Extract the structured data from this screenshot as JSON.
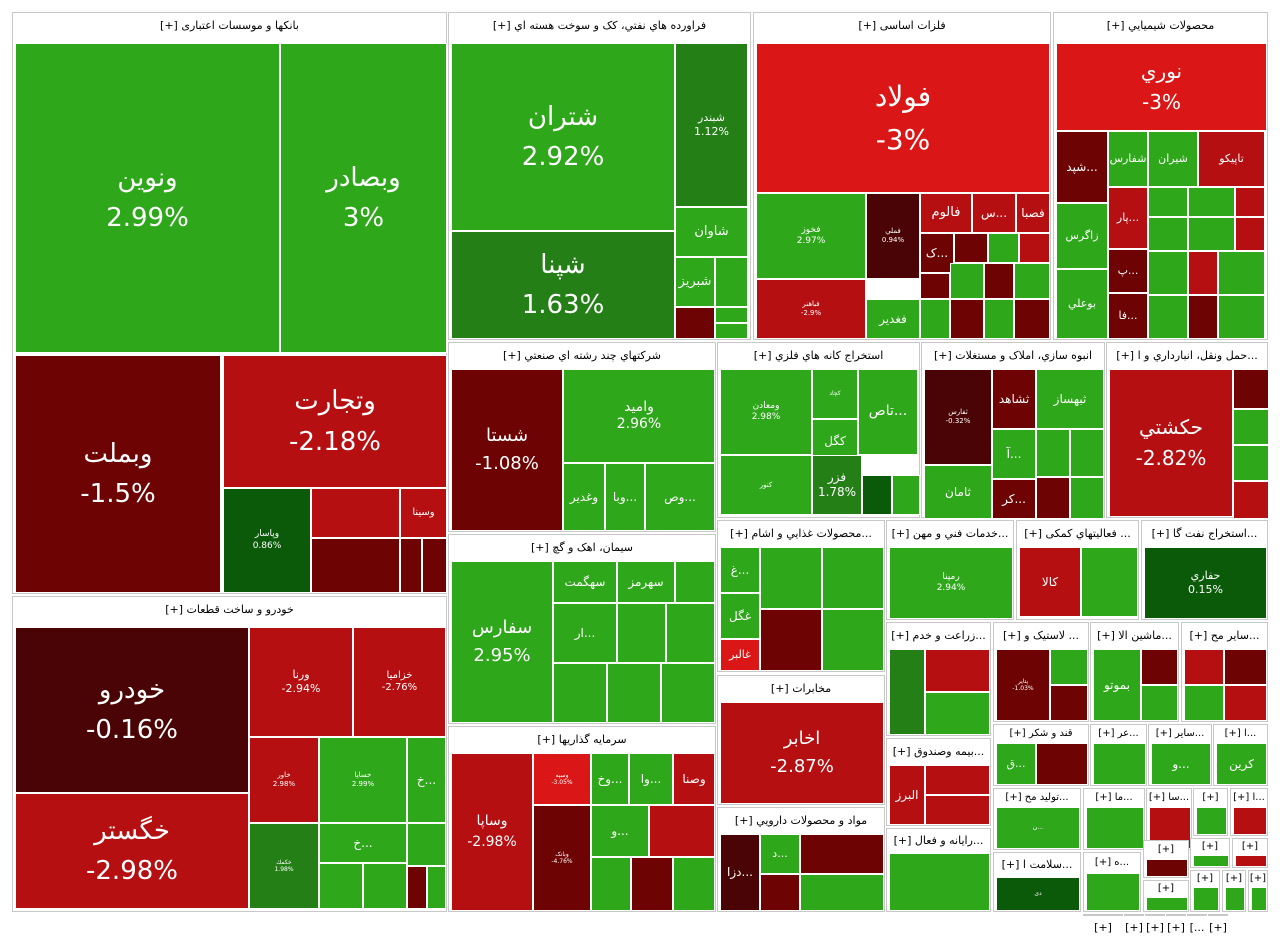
{
  "colors": {
    "g": "#2ea81a",
    "dg": "#257f17",
    "vdg": "#0b5a0a",
    "r": "#b50f12",
    "br": "#da1616",
    "dr": "#6d0303",
    "vdr": "#4a0405"
  },
  "sectors": [
    {
      "id": "banks",
      "title": "بانکها و موسسات اعتباری [+]",
      "tiles": [
        {
          "name": "ونوین",
          "pct": "2.99%",
          "color": "g",
          "big": 1
        },
        {
          "name": "وبصادر",
          "pct": "3%",
          "color": "g",
          "big": 1
        },
        {
          "name": "وبملت",
          "pct": "-1.5%",
          "color": "dr",
          "big": 1
        },
        {
          "name": "وتجارت",
          "pct": "-2.18%",
          "color": "r",
          "big": 1
        },
        {
          "name": "وپاسار",
          "pct": "0.86%",
          "color": "vdg",
          "big": 0
        },
        {
          "name": "وسينا",
          "pct": "",
          "color": "r",
          "big": 0
        }
      ]
    },
    {
      "id": "refinery",
      "title": "فراورده هاي نفتي، کک و سوخت هسته اي [+]",
      "tiles": [
        {
          "name": "شتران",
          "pct": "2.92%",
          "color": "g",
          "big": 1
        },
        {
          "name": "شپنا",
          "pct": "1.63%",
          "color": "dg",
          "big": 1
        },
        {
          "name": "شبندر",
          "pct": "1.12%",
          "color": "dg",
          "big": 0
        },
        {
          "name": "شاوان",
          "pct": "",
          "color": "g",
          "big": 0
        },
        {
          "name": "شبريز",
          "pct": "",
          "color": "g",
          "big": 0
        }
      ]
    },
    {
      "id": "metals",
      "title": "فلزات اساسی [+]",
      "tiles": [
        {
          "name": "فولاد",
          "pct": "-3%",
          "color": "br",
          "big": 1
        },
        {
          "name": "فخوز",
          "pct": "2.97%",
          "color": "g",
          "big": 0
        },
        {
          "name": "فملي",
          "pct": "0.94%",
          "color": "vdr",
          "big": 0
        },
        {
          "name": "فالوم",
          "pct": "",
          "color": "r",
          "big": 0
        },
        {
          "name": "فصبا",
          "pct": "",
          "color": "r",
          "big": 0
        },
        {
          "name": "فغدير",
          "pct": "",
          "color": "g",
          "big": 0
        },
        {
          "name": "فباهنر",
          "pct": "-2.9%",
          "color": "r",
          "big": 0
        },
        {
          "name": "...س",
          "pct": "",
          "color": "r",
          "big": 0
        },
        {
          "name": "...ک",
          "pct": "",
          "color": "dr",
          "big": 0
        }
      ]
    },
    {
      "id": "chem",
      "title": "محصولات شيميايي [+]",
      "tiles": [
        {
          "name": "نوري",
          "pct": "-3%",
          "color": "br",
          "big": 1
        },
        {
          "name": "...شپد",
          "pct": "",
          "color": "dr",
          "big": 0
        },
        {
          "name": "شفارس",
          "pct": "",
          "color": "g",
          "big": 0
        },
        {
          "name": "شيران",
          "pct": "",
          "color": "g",
          "big": 0
        },
        {
          "name": "تاپيكو",
          "pct": "",
          "color": "r",
          "big": 0
        },
        {
          "name": "...پار",
          "pct": "",
          "color": "r",
          "big": 0
        },
        {
          "name": "زاگرس",
          "pct": "",
          "color": "g",
          "big": 0
        },
        {
          "name": "...پ",
          "pct": "",
          "color": "dr",
          "big": 0
        },
        {
          "name": "...فا",
          "pct": "",
          "color": "dr",
          "big": 0
        },
        {
          "name": "بوعلي",
          "pct": "",
          "color": "g",
          "big": 0
        }
      ]
    },
    {
      "id": "auto",
      "title": "خودرو و ساخت قطعات [+]",
      "tiles": [
        {
          "name": "خودرو",
          "pct": "-0.16%",
          "color": "vdr",
          "big": 1
        },
        {
          "name": "خگستر",
          "pct": "-2.98%",
          "color": "r",
          "big": 1
        },
        {
          "name": "ورنا",
          "pct": "-2.94%",
          "color": "r",
          "big": 0
        },
        {
          "name": "خزاميا",
          "pct": "-2.76%",
          "color": "r",
          "big": 0
        },
        {
          "name": "خاور",
          "pct": "2.98%",
          "color": "r",
          "big": 0
        },
        {
          "name": "خساپا",
          "pct": "2.99%",
          "color": "g",
          "big": 0
        },
        {
          "name": "...خ",
          "pct": "",
          "color": "g",
          "big": 0
        },
        {
          "name": "...خ",
          "pct": "",
          "color": "g",
          "big": 0
        },
        {
          "name": "خكمك",
          "pct": "1.98%",
          "color": "dg",
          "big": 0
        }
      ]
    },
    {
      "id": "multi",
      "title": "شرکتهاي چند رشته اي صنعتي [+]",
      "tiles": [
        {
          "name": "شستا",
          "pct": "-1.08%",
          "color": "dr",
          "big": 1
        },
        {
          "name": "واميد",
          "pct": "2.96%",
          "color": "g",
          "big": 0
        },
        {
          "name": "وغدير",
          "pct": "",
          "color": "g",
          "big": 0
        },
        {
          "name": "...وبا",
          "pct": "",
          "color": "g",
          "big": 0
        },
        {
          "name": "...وص",
          "pct": "",
          "color": "g",
          "big": 0
        }
      ]
    },
    {
      "id": "mining",
      "title": "استخراج کانه هاي فلزي [+]",
      "tiles": [
        {
          "name": "ومعادن",
          "pct": "2.98%",
          "color": "g",
          "big": 0
        },
        {
          "name": "كچاد",
          "pct": "",
          "color": "g",
          "big": 0
        },
        {
          "name": "...تاص",
          "pct": "",
          "color": "g",
          "big": 0
        },
        {
          "name": "كگل",
          "pct": "",
          "color": "g",
          "big": 0
        },
        {
          "name": "فزر",
          "pct": "1.78%",
          "color": "dg",
          "big": 0
        },
        {
          "name": "كنور",
          "pct": "",
          "color": "g",
          "big": 0
        }
      ]
    },
    {
      "id": "construct",
      "title": "انبوه سازي، املاک و مستغلات [+]",
      "tiles": [
        {
          "name": "ثفارس",
          "pct": "-0.32%",
          "color": "vdr",
          "big": 0
        },
        {
          "name": "ثشاهد",
          "pct": "",
          "color": "dr",
          "big": 0
        },
        {
          "name": "ثبهساز",
          "pct": "",
          "color": "g",
          "big": 0
        },
        {
          "name": "...آ",
          "pct": "",
          "color": "g",
          "big": 0
        },
        {
          "name": "...كر",
          "pct": "",
          "color": "dr",
          "big": 0
        },
        {
          "name": "ثامان",
          "pct": "",
          "color": "g",
          "big": 0
        }
      ]
    },
    {
      "id": "transport",
      "title": "...حمل ونقل، انبارداري و ا [+]",
      "tiles": [
        {
          "name": "حكشتي",
          "pct": "-2.82%",
          "color": "r",
          "big": 1
        }
      ]
    },
    {
      "id": "cement",
      "title": "سيمان، اهک و گچ [+]",
      "tiles": [
        {
          "name": "سفارس",
          "pct": "2.95%",
          "color": "g",
          "big": 1
        },
        {
          "name": "سهگمت",
          "pct": "",
          "color": "g",
          "big": 0
        },
        {
          "name": "سهرمز",
          "pct": "",
          "color": "g",
          "big": 0
        },
        {
          "name": "...ار",
          "pct": "",
          "color": "g",
          "big": 0
        }
      ]
    },
    {
      "id": "invest",
      "title": "سرمايه گذاريها [+]",
      "tiles": [
        {
          "name": "وساپا",
          "pct": "-2.98%",
          "color": "r",
          "big": 1
        },
        {
          "name": "وسپه",
          "pct": "-3.05%",
          "color": "br",
          "big": 0
        },
        {
          "name": "...وخ",
          "pct": "",
          "color": "g",
          "big": 0
        },
        {
          "name": "...وا",
          "pct": "",
          "color": "g",
          "big": 0
        },
        {
          "name": "وصنا",
          "pct": "",
          "color": "r",
          "big": 0
        },
        {
          "name": "...و",
          "pct": "",
          "color": "g",
          "big": 0
        },
        {
          "name": "وبانک",
          "pct": "-4.76%",
          "color": "dr",
          "big": 0
        }
      ]
    },
    {
      "id": "food",
      "title": "...محصولات غذايي و اشام [+]",
      "tiles": [
        {
          "name": "...غ",
          "pct": "",
          "color": "g",
          "big": 0
        },
        {
          "name": "غگل",
          "pct": "",
          "color": "g",
          "big": 0
        },
        {
          "name": "غالبر",
          "pct": "",
          "color": "br",
          "big": 0
        }
      ]
    },
    {
      "id": "services",
      "title": "...خدمات فني و مهن [+]",
      "tiles": [
        {
          "name": "رمپنا",
          "pct": "2.94%",
          "color": "g",
          "big": 0
        }
      ]
    },
    {
      "id": "aux",
      "title": "... فعاليتهاي كمكی [+]",
      "tiles": [
        {
          "name": "كالا",
          "pct": "",
          "color": "r",
          "big": 0
        }
      ]
    },
    {
      "id": "oilx",
      "title": "...استخراج نفت گا [+]",
      "tiles": [
        {
          "name": "حفاري",
          "pct": "0.15%",
          "color": "vdg",
          "big": 0
        }
      ]
    },
    {
      "id": "telecom",
      "title": "مخابرات [+]",
      "tiles": [
        {
          "name": "اخابر",
          "pct": "-2.87%",
          "color": "r",
          "big": 1
        }
      ]
    },
    {
      "id": "pharma",
      "title": "مواد و محصولات دارويي [+]",
      "tiles": [
        {
          "name": "...دزا",
          "pct": "",
          "color": "vdr",
          "big": 0
        },
        {
          "name": "...د",
          "pct": "",
          "color": "g",
          "big": 0
        }
      ]
    },
    {
      "id": "agri",
      "title": "...زراعت و خدم [+]",
      "tiles": []
    },
    {
      "id": "rubber",
      "title": "... لاستيک و [+]",
      "tiles": [
        {
          "name": "پتاير",
          "pct": "-1.03%",
          "color": "dr",
          "big": 0
        }
      ]
    },
    {
      "id": "machine",
      "title": "...ماشين الا [+]",
      "tiles": [
        {
          "name": "بموتو",
          "pct": "",
          "color": "g",
          "big": 0
        }
      ]
    },
    {
      "id": "sayer1",
      "title": "...ساير مح [+]",
      "tiles": []
    },
    {
      "id": "insure",
      "title": "...بيمه وصندوق [+]",
      "tiles": [
        {
          "name": "البرز",
          "pct": "",
          "color": "r",
          "big": 0
        }
      ]
    },
    {
      "id": "sugar",
      "title": "قند و شكر [+]",
      "tiles": [
        {
          "name": "...ق",
          "pct": "",
          "color": "g",
          "big": 0
        }
      ]
    },
    {
      "id": "sm1",
      "title": "...عر [+]",
      "tiles": []
    },
    {
      "id": "sm2",
      "title": "...ساير [+]",
      "tiles": [
        {
          "name": "...و",
          "pct": "",
          "color": "g",
          "big": 0
        }
      ]
    },
    {
      "id": "sm3",
      "title": "...ا [+]",
      "tiles": [
        {
          "name": "كرين",
          "pct": "",
          "color": "g",
          "big": 0
        }
      ]
    },
    {
      "id": "prod",
      "title": "...توليد مح [+]",
      "tiles": [
        {
          "name": "...ن",
          "pct": "",
          "color": "g",
          "big": 0
        }
      ]
    },
    {
      "id": "sm4",
      "title": "...ما [+]",
      "tiles": []
    },
    {
      "id": "sm5",
      "title": "...سا [+]",
      "tiles": []
    },
    {
      "id": "sm6",
      "title": "[+]",
      "tiles": []
    },
    {
      "id": "sm7",
      "title": "...ا [+]",
      "tiles": []
    },
    {
      "id": "computer",
      "title": "...رايانه و فعال [+]",
      "tiles": []
    },
    {
      "id": "health",
      "title": "...سلامت ا [+]",
      "tiles": [
        {
          "name": "دی",
          "pct": "",
          "color": "vdg",
          "big": 0
        }
      ]
    },
    {
      "id": "sm8",
      "title": "...ه [+]",
      "tiles": []
    },
    {
      "id": "sm9",
      "title": "[+]",
      "tiles": []
    },
    {
      "id": "sm10",
      "title": "[+]",
      "tiles": []
    },
    {
      "id": "sm11",
      "title": "[+]",
      "tiles": []
    },
    {
      "id": "sm12",
      "title": "[+]",
      "tiles": []
    },
    {
      "id": "sm13",
      "title": "[+]",
      "tiles": []
    },
    {
      "id": "sm14",
      "title": "[+]",
      "tiles": []
    },
    {
      "id": "sm15",
      "title": "[+]",
      "tiles": []
    },
    {
      "id": "sm16",
      "title": "[+]",
      "tiles": []
    },
    {
      "id": "sm17",
      "title": "[+]",
      "tiles": []
    },
    {
      "id": "sm18",
      "title": "[+]",
      "tiles": []
    },
    {
      "id": "sm19",
      "title": "[+]",
      "tiles": []
    },
    {
      "id": "sm20",
      "title": "...]",
      "tiles": []
    },
    {
      "id": "sm21",
      "title": "[+]",
      "tiles": []
    }
  ],
  "chart_data": {
    "type": "treemap",
    "unit": "percent change",
    "sectors": [
      {
        "sector": "بانکها و موسسات اعتباری",
        "symbols": [
          {
            "name": "ونوین",
            "value": 2.99
          },
          {
            "name": "وبصادر",
            "value": 3
          },
          {
            "name": "وبملت",
            "value": -1.5
          },
          {
            "name": "وتجارت",
            "value": -2.18
          },
          {
            "name": "وپاسار",
            "value": 0.86
          }
        ]
      },
      {
        "sector": "فراورده هاي نفتي، کک و سوخت هسته اي",
        "symbols": [
          {
            "name": "شتران",
            "value": 2.92
          },
          {
            "name": "شپنا",
            "value": 1.63
          },
          {
            "name": "شبندر",
            "value": 1.12
          }
        ]
      },
      {
        "sector": "فلزات اساسی",
        "symbols": [
          {
            "name": "فولاد",
            "value": -3
          },
          {
            "name": "فخوز",
            "value": 2.97
          },
          {
            "name": "فملي",
            "value": 0.94
          },
          {
            "name": "فباهنر",
            "value": -2.9
          }
        ]
      },
      {
        "sector": "محصولات شيميايي",
        "symbols": [
          {
            "name": "نوري",
            "value": -3
          }
        ]
      },
      {
        "sector": "خودرو و ساخت قطعات",
        "symbols": [
          {
            "name": "خودرو",
            "value": -0.16
          },
          {
            "name": "خگستر",
            "value": -2.98
          },
          {
            "name": "ورنا",
            "value": -2.94
          },
          {
            "name": "خزاميا",
            "value": -2.76
          },
          {
            "name": "خاور",
            "value": 2.98
          },
          {
            "name": "خساپا",
            "value": 2.99
          },
          {
            "name": "خكمك",
            "value": 1.98
          }
        ]
      },
      {
        "sector": "شرکتهاي چند رشته اي صنعتي",
        "symbols": [
          {
            "name": "شستا",
            "value": -1.08
          },
          {
            "name": "واميد",
            "value": 2.96
          }
        ]
      },
      {
        "sector": "استخراج کانه هاي فلزي",
        "symbols": [
          {
            "name": "ومعادن",
            "value": 2.98
          },
          {
            "name": "فزر",
            "value": 1.78
          }
        ]
      },
      {
        "sector": "انبوه سازي، املاک و مستغلات",
        "symbols": [
          {
            "name": "ثفارس",
            "value": -0.32
          }
        ]
      },
      {
        "sector": "حمل ونقل، انبارداري",
        "symbols": [
          {
            "name": "حكشتي",
            "value": -2.82
          }
        ]
      },
      {
        "sector": "سيمان، اهک و گچ",
        "symbols": [
          {
            "name": "سفارس",
            "value": 2.95
          }
        ]
      },
      {
        "sector": "سرمايه گذاريها",
        "symbols": [
          {
            "name": "وساپا",
            "value": -2.98
          },
          {
            "name": "وسپه",
            "value": -3.05
          },
          {
            "name": "وبانک",
            "value": -4.76
          }
        ]
      },
      {
        "sector": "خدمات فني و مهن",
        "symbols": [
          {
            "name": "رمپنا",
            "value": 2.94
          }
        ]
      },
      {
        "sector": "استخراج نفت گا",
        "symbols": [
          {
            "name": "حفاري",
            "value": 0.15
          }
        ]
      },
      {
        "sector": "مخابرات",
        "symbols": [
          {
            "name": "اخابر",
            "value": -2.87
          }
        ]
      },
      {
        "sector": "لاستيک",
        "symbols": [
          {
            "name": "پتاير",
            "value": -1.03
          }
        ]
      }
    ]
  }
}
